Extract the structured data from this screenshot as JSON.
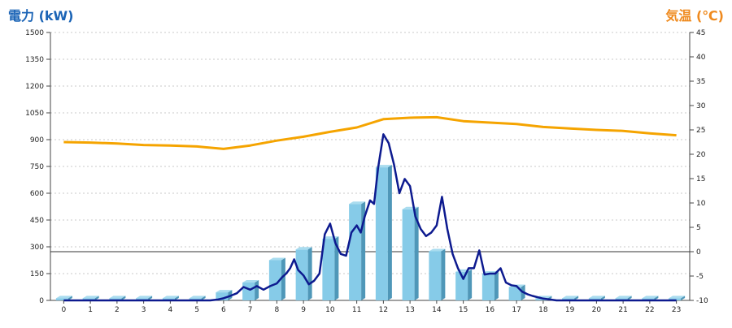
{
  "chart_data": {
    "type": "bar",
    "title_left": "電力 (kW)",
    "title_right": "気温 (℃)",
    "x_ticks": [
      "0",
      "1",
      "2",
      "3",
      "4",
      "5",
      "6",
      "7",
      "8",
      "9",
      "10",
      "11",
      "12",
      "13",
      "14",
      "15",
      "16",
      "17",
      "18",
      "19",
      "20",
      "21",
      "22",
      "23"
    ],
    "y_left_ticks": [
      "0",
      "150",
      "300",
      "450",
      "600",
      "750",
      "900",
      "1050",
      "1200",
      "1350",
      "1500"
    ],
    "y_right_ticks": [
      "-10",
      "-5",
      "0",
      "5",
      "10",
      "15",
      "20",
      "25",
      "30",
      "35",
      "40",
      "45"
    ],
    "y_left_range": [
      0,
      1500
    ],
    "y_right_range": [
      -10,
      45
    ],
    "grid": true,
    "series": [
      {
        "name": "",
        "type": "bar",
        "axis": "left",
        "x": [
          0,
          1,
          2,
          3,
          4,
          5,
          6,
          7,
          8,
          9,
          10,
          11,
          12,
          13,
          14,
          15,
          16,
          17,
          18,
          19,
          20,
          21,
          22,
          23
        ],
        "values": [
          12,
          12,
          12,
          12,
          12,
          12,
          45,
          100,
          225,
          285,
          345,
          540,
          745,
          510,
          275,
          160,
          150,
          75,
          12,
          12,
          12,
          12,
          12,
          12
        ]
      },
      {
        "name": "",
        "type": "line",
        "axis": "left",
        "x": [
          0,
          0.5,
          1,
          1.5,
          2,
          2.5,
          3,
          3.5,
          4,
          4.5,
          5,
          5.5,
          5.8,
          6,
          6.25,
          6.5,
          6.75,
          7,
          7.25,
          7.5,
          7.75,
          8,
          8.2,
          8.35,
          8.5,
          8.65,
          8.8,
          9,
          9.2,
          9.4,
          9.6,
          9.8,
          10,
          10.2,
          10.4,
          10.6,
          10.8,
          11,
          11.15,
          11.3,
          11.5,
          11.65,
          11.8,
          12,
          12.2,
          12.4,
          12.6,
          12.8,
          13,
          13.2,
          13.4,
          13.6,
          13.8,
          14,
          14.2,
          14.4,
          14.6,
          14.8,
          15,
          15.2,
          15.4,
          15.6,
          15.8,
          16,
          16.2,
          16.4,
          16.6,
          16.8,
          17,
          17.2,
          17.4,
          17.6,
          18,
          18.5,
          19,
          19.5,
          20,
          20.5,
          21,
          21.5,
          22,
          22.5,
          23
        ],
        "values": [
          0,
          0,
          0,
          0,
          0,
          0,
          0,
          0,
          0,
          0,
          0,
          0,
          5,
          12,
          25,
          40,
          75,
          60,
          80,
          60,
          80,
          95,
          130,
          150,
          180,
          230,
          170,
          140,
          90,
          110,
          150,
          370,
          430,
          320,
          260,
          250,
          380,
          420,
          380,
          470,
          560,
          540,
          740,
          930,
          880,
          760,
          600,
          680,
          640,
          470,
          400,
          360,
          380,
          420,
          580,
          400,
          260,
          180,
          120,
          180,
          180,
          280,
          145,
          150,
          150,
          180,
          100,
          85,
          80,
          50,
          35,
          25,
          10,
          0,
          0,
          0,
          0,
          0,
          0,
          0,
          0,
          0,
          0
        ]
      },
      {
        "name": "",
        "type": "line",
        "axis": "right",
        "x": [
          0,
          1,
          2,
          3,
          4,
          5,
          6,
          7,
          8,
          9,
          10,
          11,
          12,
          13,
          14,
          15,
          16,
          17,
          18,
          19,
          20,
          21,
          22,
          23
        ],
        "values": [
          22.5,
          22.4,
          22.2,
          21.9,
          21.8,
          21.6,
          21.1,
          21.8,
          22.8,
          23.6,
          24.6,
          25.5,
          27.2,
          27.5,
          27.6,
          26.8,
          26.5,
          26.2,
          25.6,
          25.3,
          25.0,
          24.8,
          24.3,
          23.9
        ]
      }
    ],
    "colors": {
      "bar_front": "#86cbe8",
      "bar_side": "#4f97b8",
      "bar_top": "#a9dcef",
      "power_line": "#0d1a8f",
      "temp_line": "#f5a400",
      "title_left": "#1b64b6",
      "title_right": "#ef8a1e"
    }
  }
}
